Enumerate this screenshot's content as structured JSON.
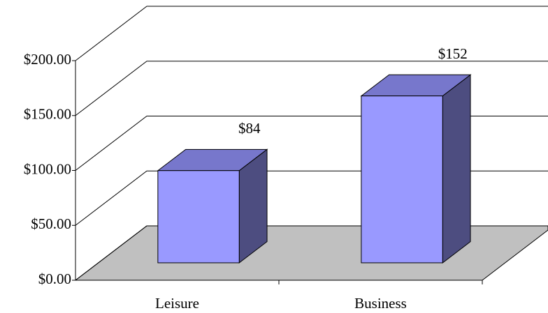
{
  "chart_data": {
    "type": "bar",
    "categories": [
      "Leisure",
      "Business"
    ],
    "values": [
      84,
      152
    ],
    "value_labels": [
      "$84",
      "$152"
    ],
    "color": "#9999ff",
    "ylim": [
      0,
      200
    ],
    "yticks": [
      {
        "value": 0,
        "label": "$0.00"
      },
      {
        "value": 50,
        "label": "$50.00"
      },
      {
        "value": 100,
        "label": "$100.00"
      },
      {
        "value": 150,
        "label": "$150.00"
      },
      {
        "value": 200,
        "label": "$200.00"
      }
    ],
    "grid": true
  }
}
